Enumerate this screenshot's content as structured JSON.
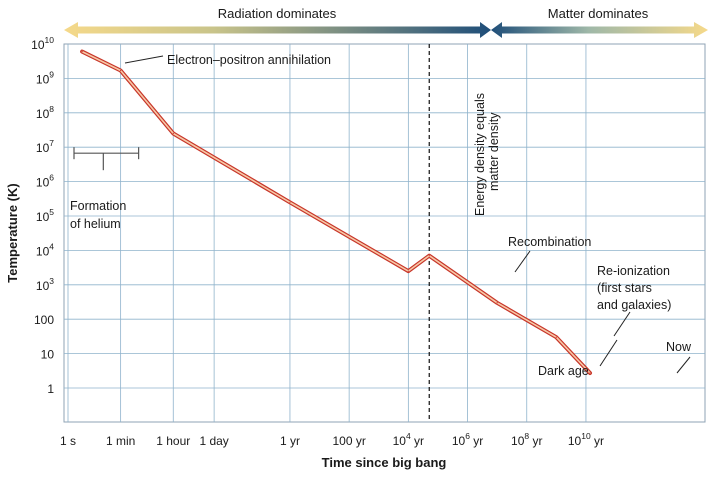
{
  "chart_data": {
    "type": "line",
    "title": "",
    "xlabel": "Time since big bang",
    "ylabel": "Temperature (K)",
    "x_scale": "log",
    "y_scale": "log",
    "x_unit": "seconds",
    "y_unit": "K",
    "xlim_seconds": [
      0.3,
      1e+18
    ],
    "ylim_K": [
      0.06,
      10000000000.0
    ],
    "grid": true,
    "series": [
      {
        "color": "#e8573c",
        "x_seconds": [
          3,
          60,
          3600,
          31500000.0,
          315000000000.0,
          1600000000000.0,
          315000000000000.0,
          3.15e+16,
          4.3e+17
        ],
        "y_K": [
          6000000000.0,
          1700000000.0,
          25000000.0,
          250000.0,
          2500.0,
          7000.0,
          300.0,
          30,
          2.73
        ]
      }
    ],
    "y_ticks": [
      {
        "value": 10000000000.0,
        "base": "10",
        "exp": "10"
      },
      {
        "value": 1000000000.0,
        "base": "10",
        "exp": "9"
      },
      {
        "value": 100000000.0,
        "base": "10",
        "exp": "8"
      },
      {
        "value": 10000000.0,
        "base": "10",
        "exp": "7"
      },
      {
        "value": 1000000.0,
        "base": "10",
        "exp": "6"
      },
      {
        "value": 100000.0,
        "base": "10",
        "exp": "5"
      },
      {
        "value": 10000.0,
        "base": "10",
        "exp": "4"
      },
      {
        "value": 1000.0,
        "base": "10",
        "exp": "3"
      },
      {
        "value": 100,
        "base": "100",
        "exp": ""
      },
      {
        "value": 10,
        "base": "10",
        "exp": ""
      },
      {
        "value": 1,
        "base": "1",
        "exp": ""
      }
    ],
    "x_ticks": [
      {
        "value": 1,
        "base": "1 s",
        "exp": "",
        "unit": ""
      },
      {
        "value": 60,
        "base": "1 min",
        "exp": "",
        "unit": ""
      },
      {
        "value": 3600,
        "base": "1 hour",
        "exp": "",
        "unit": ""
      },
      {
        "value": 86400,
        "base": "1 day",
        "exp": "",
        "unit": ""
      },
      {
        "value": 31500000.0,
        "base": "1 yr",
        "exp": "",
        "unit": ""
      },
      {
        "value": 3150000000.0,
        "base": "100 yr",
        "exp": "",
        "unit": ""
      },
      {
        "value": 315000000000.0,
        "base": "10",
        "exp": "4",
        "unit": " yr"
      },
      {
        "value": 31500000000000.0,
        "base": "10",
        "exp": "6",
        "unit": " yr"
      },
      {
        "value": 3150000000000000.0,
        "base": "10",
        "exp": "8",
        "unit": " yr"
      },
      {
        "value": 3.15e+17,
        "base": "10",
        "exp": "10",
        "unit": " yr"
      }
    ],
    "eras": {
      "radiation_label": "Radiation dominates",
      "matter_label": "Matter dominates",
      "boundary_seconds": 1600000000000.0,
      "boundary_label_line1": "Energy density equals",
      "boundary_label_line2": "matter density",
      "radiation_color": "#1f4e79",
      "matter_color": "#f3d27a"
    },
    "helium_formation": {
      "range_seconds": [
        1,
        60
      ],
      "level_K": 3000000.0,
      "label_line1": "Formation",
      "label_line2": "of helium"
    },
    "annotations": {
      "electron_positron": "Electron–positron annihilation",
      "recombination": "Recombination",
      "reionization_line1": "Re-ionization",
      "reionization_line2": "(first stars",
      "reionization_line3": "and galaxies)",
      "dark_age": "Dark age",
      "now": "Now"
    }
  }
}
